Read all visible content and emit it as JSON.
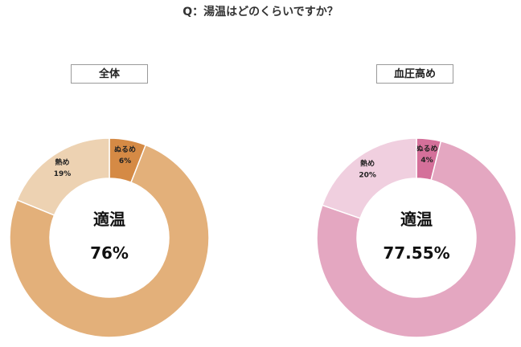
{
  "title": "Q：湯温はどのくらいですか？",
  "chart_data": [
    {
      "type": "pie",
      "title": "全体",
      "segments": [
        {
          "name": "ぬるめ",
          "value": 6,
          "display": "6%",
          "color": "#d58a45"
        },
        {
          "name": "適温",
          "value": 76,
          "display": "76%",
          "color": "#e3b07a"
        },
        {
          "name": "熱め",
          "value": 19,
          "display": "19%",
          "color": "#edd2b2"
        }
      ],
      "center": {
        "label": "適温",
        "value": "76%"
      }
    },
    {
      "type": "pie",
      "title": "血圧高め",
      "segments": [
        {
          "name": "ぬるめ",
          "value": 4,
          "display": "4%",
          "color": "#d4709a"
        },
        {
          "name": "適温",
          "value": 77.55,
          "display": "77.55%",
          "color": "#e4a7c1"
        },
        {
          "name": "熱め",
          "value": 20,
          "display": "20%",
          "color": "#f0cfdf"
        }
      ],
      "center": {
        "label": "適温",
        "value": "77.55%"
      }
    }
  ]
}
